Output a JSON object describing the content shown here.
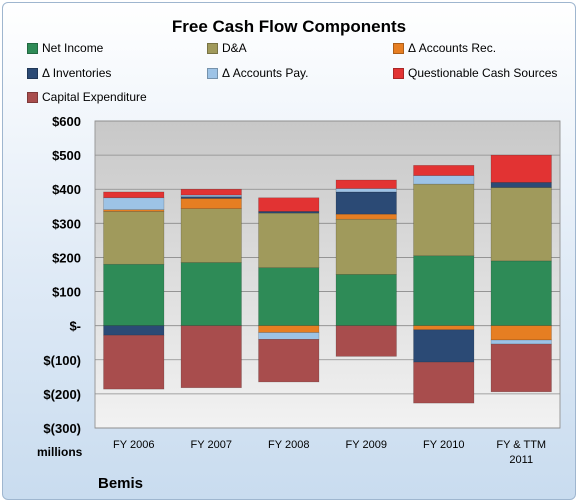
{
  "company": "Bemis",
  "units": "millions",
  "legend": [
    {
      "label": "Net Income",
      "color": "#2e8b57"
    },
    {
      "label": "D&A",
      "color": "#a09a5c"
    },
    {
      "label": "Δ Accounts Rec.",
      "color": "#e67e22"
    },
    {
      "label": "Δ Inventories",
      "color": "#2b4a75"
    },
    {
      "label": "Δ Accounts Pay.",
      "color": "#9dc3e6"
    },
    {
      "label": "Questionable Cash Sources",
      "color": "#e23333"
    },
    {
      "label": "Capital Expenditure",
      "color": "#a84d4d"
    }
  ],
  "chart_data": {
    "type": "bar",
    "stacked": true,
    "title": "Free Cash Flow Components",
    "categories": [
      "FY 2006",
      "FY 2007",
      "FY 2008",
      "FY 2009",
      "FY 2010",
      "FY & TTM 2011"
    ],
    "ylim": [
      -300,
      600
    ],
    "yticks": [
      {
        "value": 600,
        "label": "$600"
      },
      {
        "value": 500,
        "label": "$500"
      },
      {
        "value": 400,
        "label": "$400"
      },
      {
        "value": 300,
        "label": "$300"
      },
      {
        "value": 200,
        "label": "$200"
      },
      {
        "value": 100,
        "label": "$100"
      },
      {
        "value": 0,
        "label": "$-"
      },
      {
        "value": -100,
        "label": "$(100)"
      },
      {
        "value": -200,
        "label": "$(200)"
      },
      {
        "value": -300,
        "label": "$(300)"
      }
    ],
    "series": [
      {
        "name": "Net Income",
        "color": "#2e8b57",
        "values": [
          180,
          185,
          170,
          150,
          205,
          190
        ]
      },
      {
        "name": "D&A",
        "color": "#a09a5c",
        "values": [
          155,
          158,
          160,
          162,
          210,
          215
        ]
      },
      {
        "name": "Δ Accounts Rec.",
        "color": "#e67e22",
        "values": [
          5,
          30,
          -20,
          15,
          -12,
          -42
        ]
      },
      {
        "name": "Δ Inventories",
        "color": "#2b4a75",
        "values": [
          -28,
          5,
          5,
          65,
          -95,
          15
        ]
      },
      {
        "name": "Δ Accounts Pay.",
        "color": "#9dc3e6",
        "values": [
          35,
          5,
          -20,
          10,
          25,
          -12
        ]
      },
      {
        "name": "Questionable Cash Sources",
        "color": "#e23333",
        "values": [
          17,
          17,
          40,
          25,
          30,
          80
        ]
      },
      {
        "name": "Capital Expenditure",
        "color": "#a84d4d",
        "values": [
          -158,
          -182,
          -125,
          -90,
          -120,
          -140
        ]
      }
    ],
    "grid": true,
    "legend_position": "top"
  }
}
